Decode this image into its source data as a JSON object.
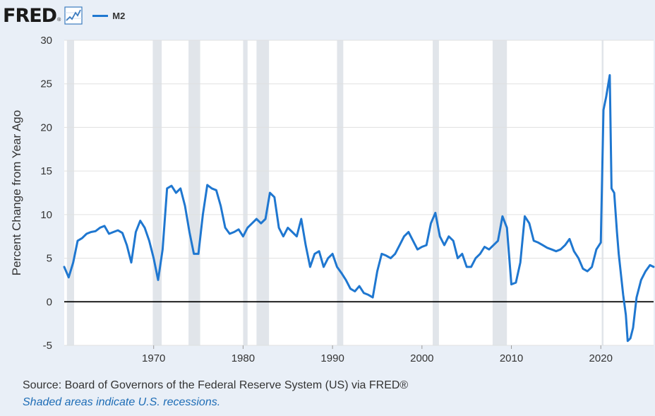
{
  "header": {
    "logo_text": "FRED",
    "logo_reg": "®",
    "legend_label": "M2"
  },
  "colors": {
    "series": "#1f77d0",
    "plot_bg": "#ffffff",
    "grid": "#e0e0e0",
    "recession": "#e1e5ea",
    "zero_line": "#000000",
    "logo_blue": "#3b7bbf"
  },
  "footer": {
    "source": "Source: Board of Governors of the Federal Reserve System (US) via FRED®",
    "note": "Shaded areas indicate U.S. recessions."
  },
  "chart_data": {
    "type": "line",
    "title": "M2",
    "xlabel": "",
    "ylabel": "Percent Change from Year Ago",
    "xlim": [
      1960.0,
      2025.9
    ],
    "ylim": [
      -5,
      30
    ],
    "yticks": [
      30,
      25,
      20,
      15,
      10,
      5,
      0,
      -5
    ],
    "xticks": [
      1970,
      1980,
      1990,
      2000,
      2010,
      2020
    ],
    "grid": true,
    "legend": "top-left",
    "recessions": [
      [
        1960.3,
        1961.1
      ],
      [
        1969.9,
        1970.9
      ],
      [
        1973.9,
        1975.2
      ],
      [
        1980.0,
        1980.5
      ],
      [
        1981.5,
        1982.9
      ],
      [
        1990.5,
        1991.2
      ],
      [
        2001.2,
        2001.9
      ],
      [
        2007.9,
        2009.5
      ],
      [
        2020.1,
        2020.3
      ]
    ],
    "series": [
      {
        "name": "M2",
        "x": [
          1960.0,
          1960.5,
          1961.0,
          1961.5,
          1962.0,
          1962.5,
          1963.0,
          1963.5,
          1964.0,
          1964.5,
          1965.0,
          1965.5,
          1966.0,
          1966.5,
          1967.0,
          1967.5,
          1968.0,
          1968.5,
          1969.0,
          1969.5,
          1970.0,
          1970.5,
          1971.0,
          1971.5,
          1972.0,
          1972.5,
          1973.0,
          1973.5,
          1974.0,
          1974.5,
          1975.0,
          1975.5,
          1976.0,
          1976.5,
          1977.0,
          1977.5,
          1978.0,
          1978.5,
          1979.0,
          1979.5,
          1980.0,
          1980.5,
          1981.0,
          1981.5,
          1982.0,
          1982.5,
          1983.0,
          1983.5,
          1984.0,
          1984.5,
          1985.0,
          1985.5,
          1986.0,
          1986.5,
          1987.0,
          1987.5,
          1988.0,
          1988.5,
          1989.0,
          1989.5,
          1990.0,
          1990.5,
          1991.0,
          1991.5,
          1992.0,
          1992.5,
          1993.0,
          1993.5,
          1994.0,
          1994.5,
          1995.0,
          1995.5,
          1996.0,
          1996.5,
          1997.0,
          1997.5,
          1998.0,
          1998.5,
          1999.0,
          1999.5,
          2000.0,
          2000.5,
          2001.0,
          2001.5,
          2002.0,
          2002.5,
          2003.0,
          2003.5,
          2004.0,
          2004.5,
          2005.0,
          2005.5,
          2006.0,
          2006.5,
          2007.0,
          2007.5,
          2008.0,
          2008.5,
          2009.0,
          2009.5,
          2010.0,
          2010.5,
          2011.0,
          2011.5,
          2012.0,
          2012.5,
          2013.0,
          2013.5,
          2014.0,
          2014.5,
          2015.0,
          2015.5,
          2016.0,
          2016.5,
          2017.0,
          2017.5,
          2018.0,
          2018.5,
          2019.0,
          2019.5,
          2020.0,
          2020.3,
          2020.6,
          2021.0,
          2021.2,
          2021.5,
          2021.8,
          2022.0,
          2022.5,
          2022.8,
          2023.0,
          2023.3,
          2023.6,
          2024.0,
          2024.5,
          2025.0,
          2025.5,
          2025.9
        ],
        "values": [
          4.0,
          2.8,
          4.5,
          7.0,
          7.3,
          7.8,
          8.0,
          8.1,
          8.5,
          8.7,
          7.8,
          8.0,
          8.2,
          7.9,
          6.5,
          4.5,
          8.0,
          9.3,
          8.5,
          7.0,
          5.0,
          2.5,
          6.0,
          13.0,
          13.3,
          12.5,
          13.0,
          11.0,
          8.0,
          5.5,
          5.5,
          10.0,
          13.4,
          13.0,
          12.8,
          11.0,
          8.5,
          7.8,
          8.0,
          8.3,
          7.5,
          8.5,
          9.0,
          9.5,
          9.0,
          9.5,
          12.5,
          12.0,
          8.5,
          7.5,
          8.5,
          8.0,
          7.5,
          9.5,
          6.5,
          4.0,
          5.5,
          5.8,
          4.0,
          5.0,
          5.5,
          4.0,
          3.3,
          2.5,
          1.5,
          1.2,
          1.8,
          1.0,
          0.8,
          0.5,
          3.5,
          5.5,
          5.3,
          5.0,
          5.5,
          6.5,
          7.5,
          8.0,
          7.0,
          6.0,
          6.3,
          6.5,
          9.0,
          10.2,
          7.5,
          6.5,
          7.5,
          7.0,
          5.0,
          5.5,
          4.0,
          4.0,
          5.0,
          5.5,
          6.3,
          6.0,
          6.5,
          7.0,
          9.8,
          8.5,
          2.0,
          2.2,
          4.5,
          9.8,
          9.0,
          7.0,
          6.8,
          6.5,
          6.2,
          6.0,
          5.8,
          6.0,
          6.5,
          7.2,
          5.8,
          5.0,
          3.8,
          3.5,
          4.0,
          6.0,
          6.8,
          22.0,
          23.5,
          26.0,
          13.0,
          12.5,
          8.0,
          5.5,
          0.8,
          -1.5,
          -4.5,
          -4.2,
          -3.0,
          0.5,
          2.5,
          3.5,
          4.2,
          4.0
        ]
      }
    ]
  }
}
